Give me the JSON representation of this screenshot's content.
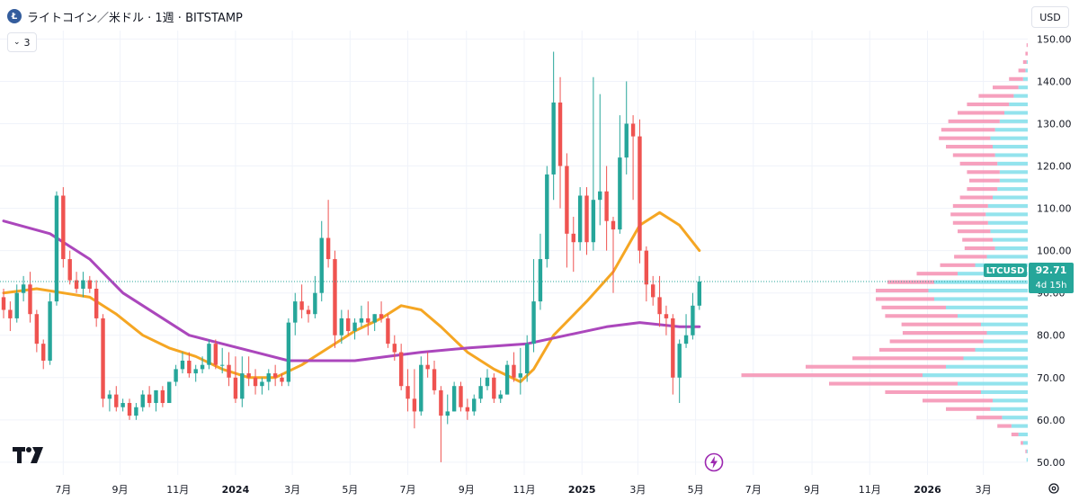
{
  "header": {
    "coin_icon_letter": "Ł",
    "title": "ライトコイン／米ドル · 1週 · BITSTAMP"
  },
  "indicator_toggle": {
    "count": "3"
  },
  "currency_button": {
    "label": "USD"
  },
  "price_label": {
    "symbol": "LTCUSD",
    "price": "92.71",
    "countdown": "4d 15h"
  },
  "colors": {
    "up": "#26a69a",
    "down": "#ef5350",
    "ma_fast": "#f5a623",
    "ma_slow": "#ab47bc",
    "vp_up": "#80deea",
    "vp_down": "#f48fb1"
  },
  "chart_data": {
    "type": "candlestick",
    "interval": "1週",
    "ylim": [
      47,
      152
    ],
    "y_ticks": [
      50,
      60,
      70,
      80,
      90,
      100,
      110,
      120,
      130,
      140,
      150
    ],
    "y_tick_labels": [
      "50.00",
      "60.00",
      "70.00",
      "80.00",
      "90.00",
      "100.00",
      "110.00",
      "120.00",
      "130.00",
      "140.00",
      "150.00"
    ],
    "x_labels": [
      {
        "date": "2023-07-03",
        "label": "7月"
      },
      {
        "date": "2023-09-01",
        "label": "9月"
      },
      {
        "date": "2023-11-01",
        "label": "11月"
      },
      {
        "date": "2024-01-01",
        "label": "2024"
      },
      {
        "date": "2024-03-01",
        "label": "3月"
      },
      {
        "date": "2024-05-01",
        "label": "5月"
      },
      {
        "date": "2024-07-01",
        "label": "7月"
      },
      {
        "date": "2024-09-01",
        "label": "9月"
      },
      {
        "date": "2024-11-01",
        "label": "11月"
      },
      {
        "date": "2025-01-01",
        "label": "2025"
      },
      {
        "date": "2025-03-01",
        "label": "3月"
      },
      {
        "date": "2025-05-01",
        "label": "5月"
      },
      {
        "date": "2025-07-01",
        "label": "7月"
      },
      {
        "date": "2025-09-01",
        "label": "9月"
      },
      {
        "date": "2025-11-01",
        "label": "11月"
      },
      {
        "date": "2026-01-01",
        "label": "2026"
      },
      {
        "date": "2026-03-01",
        "label": "3月"
      }
    ],
    "x_start": "2023-05-01",
    "x_end": "2026-04-15",
    "last_price": 92.71,
    "candles": [
      [
        "2023-05-01",
        89,
        91,
        84,
        86
      ],
      [
        "2023-05-08",
        86,
        88,
        81,
        84
      ],
      [
        "2023-05-15",
        84,
        92,
        83,
        90
      ],
      [
        "2023-05-22",
        90,
        94,
        88,
        92
      ],
      [
        "2023-05-29",
        92,
        95,
        83,
        85
      ],
      [
        "2023-06-05",
        85,
        86,
        76,
        78
      ],
      [
        "2023-06-12",
        78,
        79,
        72,
        74
      ],
      [
        "2023-06-19",
        74,
        90,
        73,
        88
      ],
      [
        "2023-06-26",
        88,
        114,
        87,
        113
      ],
      [
        "2023-07-03",
        113,
        115,
        96,
        98
      ],
      [
        "2023-07-10",
        98,
        100,
        92,
        93
      ],
      [
        "2023-07-17",
        93,
        95,
        90,
        91
      ],
      [
        "2023-07-24",
        91,
        95,
        89,
        93
      ],
      [
        "2023-07-31",
        93,
        94,
        90,
        91
      ],
      [
        "2023-08-07",
        91,
        93,
        82,
        84
      ],
      [
        "2023-08-14",
        84,
        85,
        63,
        65
      ],
      [
        "2023-08-21",
        65,
        67,
        62,
        66
      ],
      [
        "2023-08-28",
        66,
        68,
        62,
        63
      ],
      [
        "2023-09-04",
        63,
        65,
        62,
        64
      ],
      [
        "2023-09-11",
        64,
        65,
        60,
        61
      ],
      [
        "2023-09-18",
        61,
        64,
        60,
        63
      ],
      [
        "2023-09-25",
        63,
        67,
        62,
        66
      ],
      [
        "2023-10-02",
        66,
        68,
        63,
        64
      ],
      [
        "2023-10-09",
        64,
        67,
        62,
        67
      ],
      [
        "2023-10-16",
        67,
        68,
        63,
        64
      ],
      [
        "2023-10-23",
        64,
        69,
        64,
        69
      ],
      [
        "2023-10-30",
        69,
        73,
        68,
        72
      ],
      [
        "2023-11-06",
        72,
        76,
        71,
        74
      ],
      [
        "2023-11-13",
        74,
        76,
        70,
        71
      ],
      [
        "2023-11-20",
        71,
        73,
        69,
        72
      ],
      [
        "2023-11-27",
        72,
        75,
        71,
        73
      ],
      [
        "2023-12-04",
        73,
        79,
        72,
        78
      ],
      [
        "2023-12-11",
        78,
        79,
        72,
        73
      ],
      [
        "2023-12-18",
        73,
        77,
        71,
        73
      ],
      [
        "2023-12-25",
        73,
        76,
        68,
        70
      ],
      [
        "2024-01-01",
        70,
        75,
        64,
        65
      ],
      [
        "2024-01-08",
        65,
        75,
        63,
        71
      ],
      [
        "2024-01-15",
        71,
        75,
        68,
        70
      ],
      [
        "2024-01-22",
        70,
        72,
        66,
        68
      ],
      [
        "2024-01-29",
        68,
        70,
        66,
        69
      ],
      [
        "2024-02-05",
        69,
        72,
        67,
        71
      ],
      [
        "2024-02-12",
        71,
        73,
        68,
        70
      ],
      [
        "2024-02-19",
        70,
        71,
        68,
        69
      ],
      [
        "2024-02-26",
        69,
        84,
        68,
        83
      ],
      [
        "2024-03-04",
        83,
        90,
        80,
        88
      ],
      [
        "2024-03-11",
        88,
        92,
        84,
        86
      ],
      [
        "2024-03-18",
        86,
        87,
        83,
        85
      ],
      [
        "2024-03-25",
        85,
        94,
        84,
        90
      ],
      [
        "2024-04-01",
        90,
        107,
        88,
        103
      ],
      [
        "2024-04-08",
        103,
        112,
        96,
        98
      ],
      [
        "2024-04-15",
        98,
        100,
        77,
        80
      ],
      [
        "2024-04-22",
        80,
        86,
        78,
        84
      ],
      [
        "2024-04-29",
        84,
        86,
        80,
        81
      ],
      [
        "2024-05-06",
        81,
        84,
        79,
        83
      ],
      [
        "2024-05-13",
        83,
        87,
        82,
        84
      ],
      [
        "2024-05-20",
        84,
        88,
        80,
        83
      ],
      [
        "2024-05-27",
        83,
        85,
        81,
        85
      ],
      [
        "2024-06-03",
        85,
        88,
        83,
        84
      ],
      [
        "2024-06-10",
        84,
        85,
        77,
        78
      ],
      [
        "2024-06-17",
        78,
        80,
        74,
        76
      ],
      [
        "2024-06-24",
        76,
        78,
        67,
        68
      ],
      [
        "2024-07-01",
        68,
        72,
        62,
        65
      ],
      [
        "2024-07-08",
        65,
        72,
        58,
        62
      ],
      [
        "2024-07-15",
        62,
        75,
        61,
        73
      ],
      [
        "2024-07-22",
        73,
        76,
        70,
        72
      ],
      [
        "2024-07-29",
        72,
        74,
        66,
        67
      ],
      [
        "2024-08-05",
        67,
        68,
        50,
        61
      ],
      [
        "2024-08-12",
        61,
        66,
        59,
        62
      ],
      [
        "2024-08-19",
        62,
        69,
        62,
        68
      ],
      [
        "2024-08-26",
        68,
        69,
        62,
        63
      ],
      [
        "2024-09-02",
        63,
        65,
        60,
        62
      ],
      [
        "2024-09-09",
        62,
        66,
        61,
        65
      ],
      [
        "2024-09-16",
        65,
        70,
        64,
        68
      ],
      [
        "2024-09-23",
        68,
        72,
        67,
        70
      ],
      [
        "2024-09-30",
        70,
        71,
        64,
        65
      ],
      [
        "2024-10-07",
        65,
        67,
        64,
        66
      ],
      [
        "2024-10-14",
        66,
        74,
        66,
        73
      ],
      [
        "2024-10-21",
        73,
        76,
        69,
        70
      ],
      [
        "2024-10-28",
        70,
        77,
        66,
        71
      ],
      [
        "2024-11-04",
        71,
        80,
        69,
        78
      ],
      [
        "2024-11-11",
        78,
        98,
        76,
        88
      ],
      [
        "2024-11-18",
        88,
        104,
        86,
        98
      ],
      [
        "2024-11-25",
        98,
        120,
        96,
        118
      ],
      [
        "2024-12-02",
        118,
        147,
        112,
        135
      ],
      [
        "2024-12-09",
        135,
        141,
        110,
        120
      ],
      [
        "2024-12-16",
        120,
        123,
        96,
        104
      ],
      [
        "2024-12-23",
        104,
        108,
        95,
        102
      ],
      [
        "2024-12-30",
        102,
        115,
        100,
        113
      ],
      [
        "2025-01-06",
        113,
        115,
        99,
        102
      ],
      [
        "2025-01-13",
        102,
        141,
        100,
        112
      ],
      [
        "2025-01-20",
        112,
        137,
        106,
        114
      ],
      [
        "2025-01-27",
        114,
        120,
        100,
        107
      ],
      [
        "2025-02-03",
        107,
        108,
        90,
        105
      ],
      [
        "2025-02-10",
        105,
        132,
        104,
        122
      ],
      [
        "2025-02-17",
        122,
        140,
        118,
        130
      ],
      [
        "2025-02-24",
        130,
        132,
        112,
        127
      ],
      [
        "2025-03-03",
        127,
        131,
        97,
        100
      ],
      [
        "2025-03-10",
        100,
        101,
        88,
        92
      ],
      [
        "2025-03-17",
        92,
        94,
        87,
        89
      ],
      [
        "2025-03-24",
        89,
        94,
        82,
        85
      ],
      [
        "2025-03-31",
        85,
        87,
        80,
        84
      ],
      [
        "2025-04-07",
        84,
        85,
        66,
        70
      ],
      [
        "2025-04-14",
        70,
        79,
        64,
        78
      ],
      [
        "2025-04-21",
        78,
        85,
        77,
        80
      ],
      [
        "2025-04-28",
        80,
        90,
        79,
        87
      ],
      [
        "2025-05-05",
        87,
        94,
        86,
        92.71
      ]
    ],
    "series": [
      {
        "type": "line",
        "color": "#f5a623",
        "points": [
          [
            "2023-05-01",
            90
          ],
          [
            "2023-06-05",
            91
          ],
          [
            "2023-07-03",
            90
          ],
          [
            "2023-07-31",
            89
          ],
          [
            "2023-08-28",
            85
          ],
          [
            "2023-09-25",
            80
          ],
          [
            "2023-10-23",
            77
          ],
          [
            "2023-11-20",
            75
          ],
          [
            "2023-12-18",
            72
          ],
          [
            "2024-01-15",
            70
          ],
          [
            "2024-02-12",
            70
          ],
          [
            "2024-03-11",
            73
          ],
          [
            "2024-04-08",
            77
          ],
          [
            "2024-05-06",
            81
          ],
          [
            "2024-06-03",
            84
          ],
          [
            "2024-06-24",
            87
          ],
          [
            "2024-07-15",
            86
          ],
          [
            "2024-08-05",
            82
          ],
          [
            "2024-09-02",
            76
          ],
          [
            "2024-09-30",
            72
          ],
          [
            "2024-10-28",
            69
          ],
          [
            "2024-11-11",
            72
          ],
          [
            "2024-12-02",
            80
          ],
          [
            "2025-01-06",
            88
          ],
          [
            "2025-02-03",
            95
          ],
          [
            "2025-03-03",
            106
          ],
          [
            "2025-03-24",
            109
          ],
          [
            "2025-04-14",
            106
          ],
          [
            "2025-05-05",
            100
          ]
        ]
      },
      {
        "type": "line",
        "color": "#ab47bc",
        "points": [
          [
            "2023-05-01",
            107
          ],
          [
            "2023-06-19",
            104
          ],
          [
            "2023-07-31",
            98
          ],
          [
            "2023-09-04",
            90
          ],
          [
            "2023-10-09",
            85
          ],
          [
            "2023-11-13",
            80
          ],
          [
            "2023-12-18",
            78
          ],
          [
            "2024-01-22",
            76
          ],
          [
            "2024-02-26",
            74
          ],
          [
            "2024-04-01",
            74
          ],
          [
            "2024-05-06",
            74
          ],
          [
            "2024-06-10",
            75
          ],
          [
            "2024-07-15",
            76
          ],
          [
            "2024-09-02",
            77
          ],
          [
            "2024-11-04",
            78
          ],
          [
            "2024-12-16",
            80
          ],
          [
            "2025-01-27",
            82
          ],
          [
            "2025-03-03",
            83
          ],
          [
            "2025-04-14",
            82
          ],
          [
            "2025-05-05",
            82
          ]
        ]
      }
    ],
    "volume_profile": {
      "bin_size": 0.5,
      "rows": [
        [
          50,
          0,
          1
        ],
        [
          52,
          1,
          1
        ],
        [
          54,
          2,
          4
        ],
        [
          56,
          6,
          8
        ],
        [
          58,
          12,
          14
        ],
        [
          60,
          22,
          22
        ],
        [
          62,
          38,
          32
        ],
        [
          64,
          60,
          30
        ],
        [
          66,
          82,
          40
        ],
        [
          68,
          110,
          60
        ],
        [
          70,
          155,
          90
        ],
        [
          72,
          120,
          70
        ],
        [
          74,
          95,
          55
        ],
        [
          76,
          82,
          45
        ],
        [
          78,
          80,
          38
        ],
        [
          80,
          72,
          35
        ],
        [
          82,
          68,
          40
        ],
        [
          84,
          62,
          60
        ],
        [
          86,
          55,
          70
        ],
        [
          88,
          50,
          80
        ],
        [
          90,
          45,
          85
        ],
        [
          92,
          40,
          80
        ],
        [
          94,
          35,
          60
        ],
        [
          96,
          30,
          45
        ],
        [
          98,
          28,
          35
        ],
        [
          100,
          26,
          28
        ],
        [
          102,
          26,
          30
        ],
        [
          104,
          28,
          32
        ],
        [
          106,
          30,
          34
        ],
        [
          108,
          30,
          36
        ],
        [
          110,
          30,
          34
        ],
        [
          112,
          28,
          30
        ],
        [
          114,
          26,
          26
        ],
        [
          116,
          26,
          24
        ],
        [
          118,
          28,
          24
        ],
        [
          120,
          32,
          26
        ],
        [
          122,
          36,
          28
        ],
        [
          124,
          40,
          30
        ],
        [
          126,
          44,
          32
        ],
        [
          128,
          46,
          28
        ],
        [
          130,
          44,
          24
        ],
        [
          132,
          40,
          20
        ],
        [
          134,
          36,
          16
        ],
        [
          136,
          30,
          12
        ],
        [
          138,
          22,
          8
        ],
        [
          140,
          12,
          4
        ],
        [
          142,
          6,
          2
        ],
        [
          144,
          3,
          1
        ],
        [
          146,
          2,
          0
        ],
        [
          148,
          1,
          0
        ]
      ]
    }
  }
}
